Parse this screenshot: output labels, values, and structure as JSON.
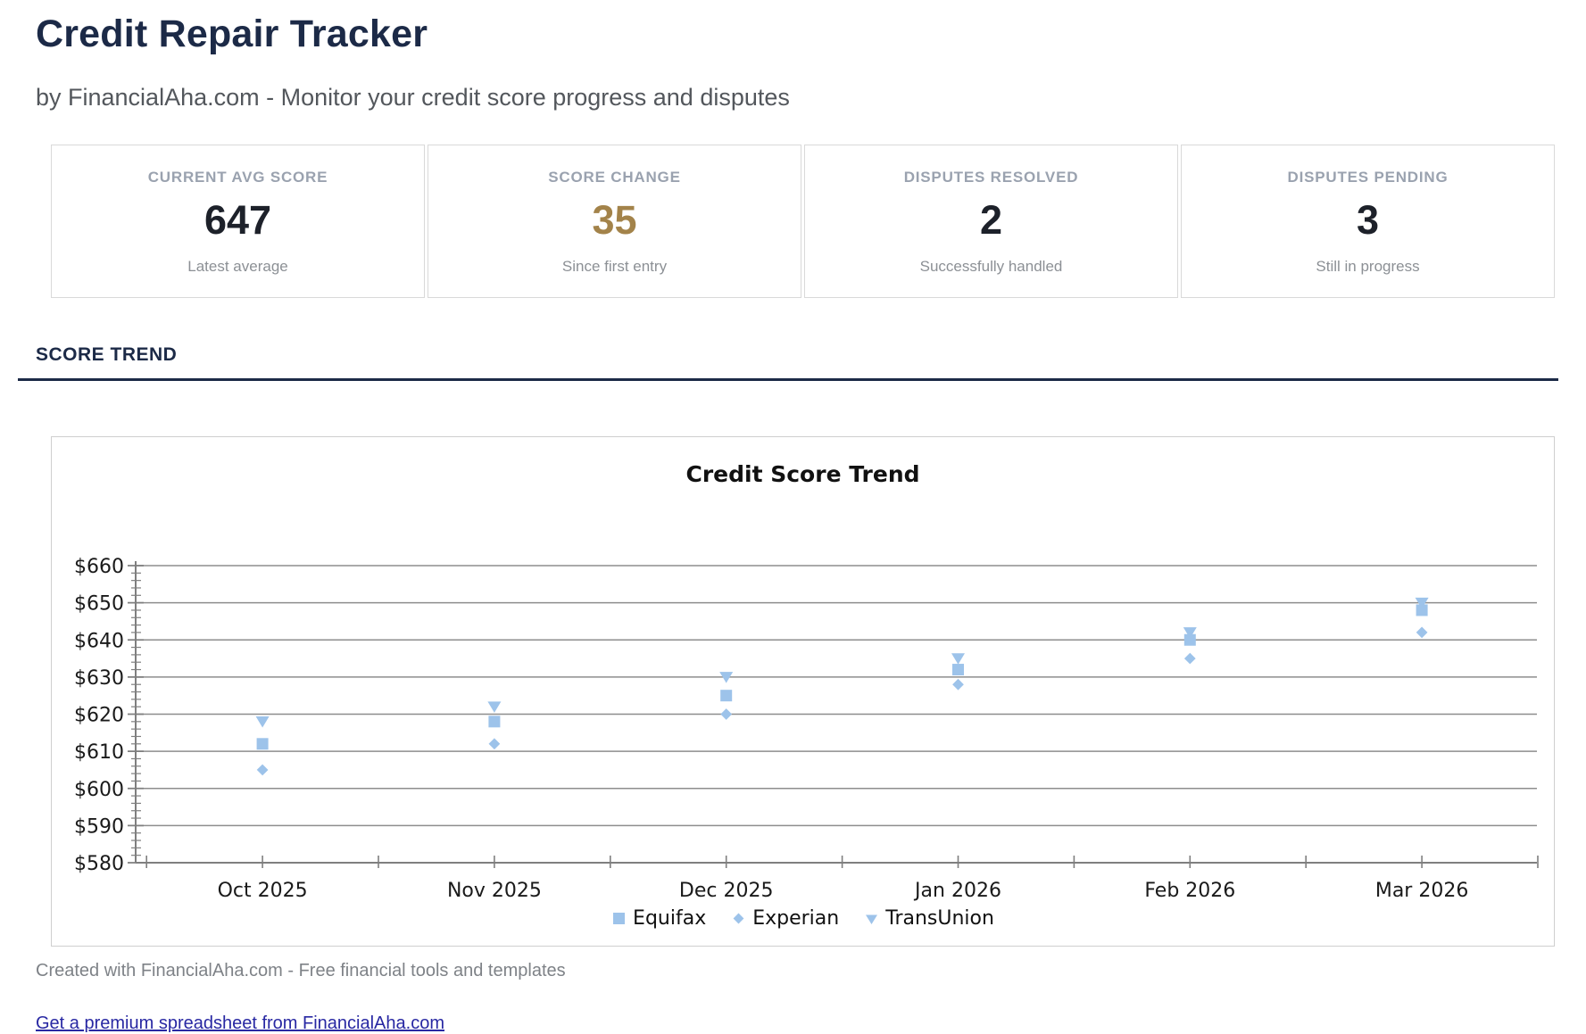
{
  "page": {
    "title": "Credit Repair Tracker",
    "subtitle": "by FinancialAha.com - Monitor your credit score progress and disputes"
  },
  "stats": [
    {
      "label": "CURRENT AVG SCORE",
      "value": "647",
      "sub": "Latest average"
    },
    {
      "label": "SCORE CHANGE",
      "value": "35",
      "sub": "Since first entry"
    },
    {
      "label": "DISPUTES RESOLVED",
      "value": "2",
      "sub": "Successfully handled"
    },
    {
      "label": "DISPUTES PENDING",
      "value": "3",
      "sub": "Still in progress"
    }
  ],
  "section": {
    "title": "SCORE TREND"
  },
  "chart_data": {
    "type": "scatter",
    "title": "Credit Score Trend",
    "categories": [
      "Oct 2025",
      "Nov 2025",
      "Dec 2025",
      "Jan 2026",
      "Feb 2026",
      "Mar 2026"
    ],
    "series": [
      {
        "name": "Equifax",
        "marker": "square",
        "values": [
          612,
          618,
          625,
          632,
          640,
          648
        ]
      },
      {
        "name": "Experian",
        "marker": "diamond",
        "values": [
          605,
          612,
          620,
          628,
          635,
          642
        ]
      },
      {
        "name": "TransUnion",
        "marker": "triangle-down",
        "values": [
          618,
          622,
          630,
          635,
          642,
          650
        ]
      }
    ],
    "ylim": [
      580,
      660
    ],
    "ytick_step": 10,
    "ytick_minor_step": 2,
    "ytick_prefix": "$",
    "grid": "horizontal",
    "legend_position": "bottom",
    "marker_color": "#9dc3ea"
  },
  "footer": {
    "credit": "Created with FinancialAha.com - Free financial tools and templates",
    "link": "Get a premium spreadsheet from FinancialAha.com"
  },
  "colors": {
    "navy": "#1c2a47",
    "gold": "#a3834a",
    "marker_blue": "#9dc3ea",
    "link_blue": "#2828a3",
    "gridline_gray": "#8d8d8d"
  }
}
